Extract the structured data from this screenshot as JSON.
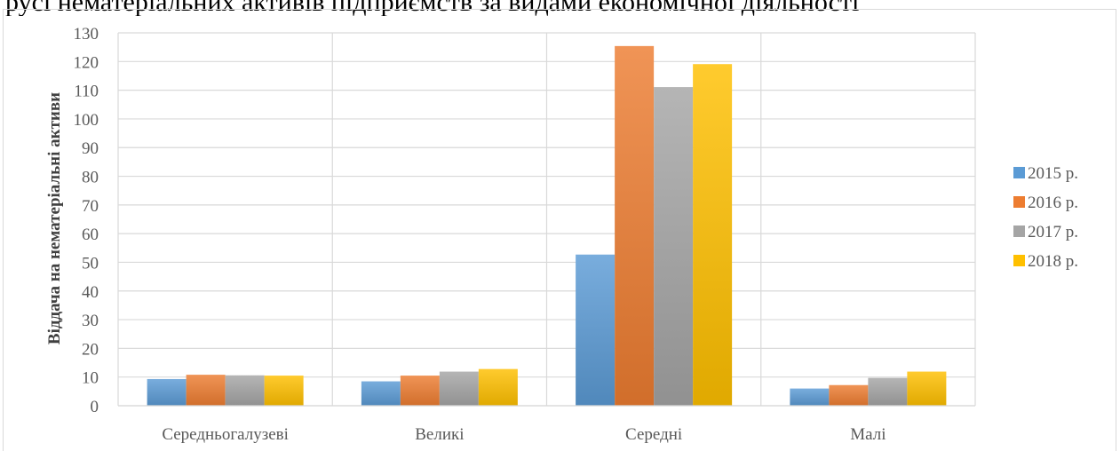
{
  "top_text": "русі нематеріальних активів підприємств за видами економічної діяльності",
  "chart_data": {
    "type": "bar",
    "title": "",
    "xlabel": "",
    "ylabel": "Віддача на нематеріальні активи",
    "ylim": [
      0,
      130
    ],
    "yticks": [
      0,
      10,
      20,
      30,
      40,
      50,
      60,
      70,
      80,
      90,
      100,
      110,
      120,
      130
    ],
    "grid": true,
    "legend_position": "right",
    "categories": [
      "Середньогалузеві",
      "Великі",
      "Середні",
      "Малі"
    ],
    "series": [
      {
        "name": "2015 р.",
        "values": [
          9.3,
          8.5,
          52.7,
          6.0
        ],
        "color": "#5b9bd5"
      },
      {
        "name": "2016 р.",
        "values": [
          10.8,
          10.5,
          125.4,
          7.2
        ],
        "color": "#ed7d31"
      },
      {
        "name": "2017 р.",
        "values": [
          10.6,
          11.9,
          111.1,
          9.7
        ],
        "color": "#a5a5a5"
      },
      {
        "name": "2018 р.",
        "values": [
          10.5,
          12.8,
          119.1,
          11.9
        ],
        "color": "#ffc000"
      }
    ]
  }
}
